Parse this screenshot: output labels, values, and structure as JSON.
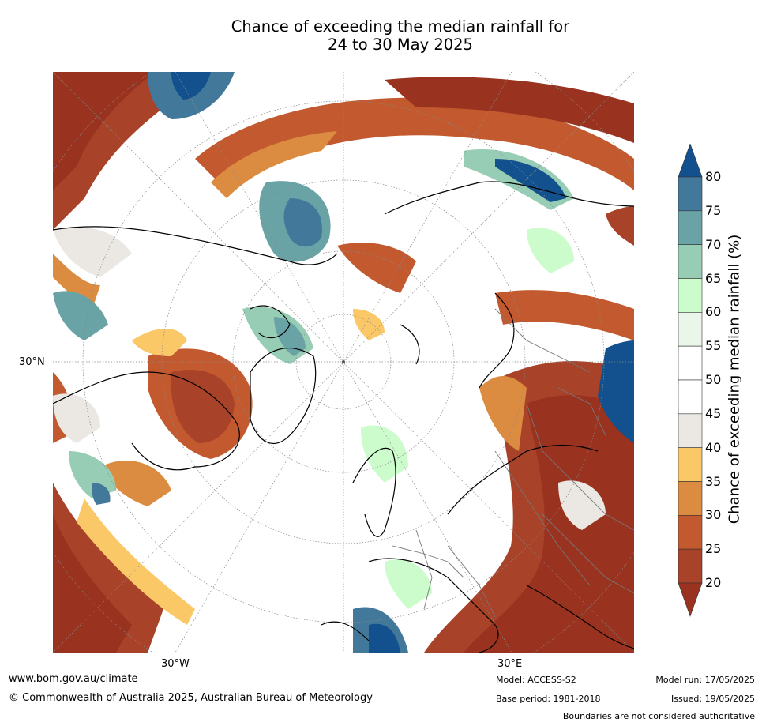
{
  "title_line1": "Chance of exceeding the median rainfall for",
  "title_line2": "24 to 30 May 2025",
  "graticule_labels": {
    "lat": "30°N",
    "lon_west": "30°W",
    "lon_east": "30°E"
  },
  "colorbar": {
    "label": "Chance of exceeding median rainfall (%)",
    "ticks": [
      "80",
      "75",
      "70",
      "65",
      "60",
      "55",
      "50",
      "45",
      "40",
      "35",
      "30",
      "25",
      "20"
    ],
    "bins": [
      {
        "range": "<20",
        "color": "#993320"
      },
      {
        "range": "20-25",
        "color": "#a84228"
      },
      {
        "range": "25-30",
        "color": "#c35a2f"
      },
      {
        "range": "30-35",
        "color": "#dc8c41"
      },
      {
        "range": "35-40",
        "color": "#fbc868"
      },
      {
        "range": "40-45",
        "color": "#ebe8e3"
      },
      {
        "range": "45-50",
        "color": "#ffffff"
      },
      {
        "range": "50-55",
        "color": "#ffffff"
      },
      {
        "range": "55-60",
        "color": "#e9f6e9"
      },
      {
        "range": "60-65",
        "color": "#ccfccc"
      },
      {
        "range": "65-70",
        "color": "#97cdb4"
      },
      {
        "range": "70-75",
        "color": "#6aa3a6"
      },
      {
        "range": "75-80",
        "color": "#42799b"
      },
      {
        "range": ">80",
        "color": "#13508e"
      }
    ]
  },
  "footer": {
    "url": "www.bom.gov.au/climate",
    "copyright": "© Commonwealth of Australia 2025, Australian Bureau of Meteorology",
    "model": "Model: ACCESS-S2",
    "base_period": "Base period: 1981-2018",
    "model_run": "Model run: 17/05/2025",
    "issued": "Issued: 19/05/2025",
    "disclaimer": "Boundaries are not considered authoritative"
  }
}
